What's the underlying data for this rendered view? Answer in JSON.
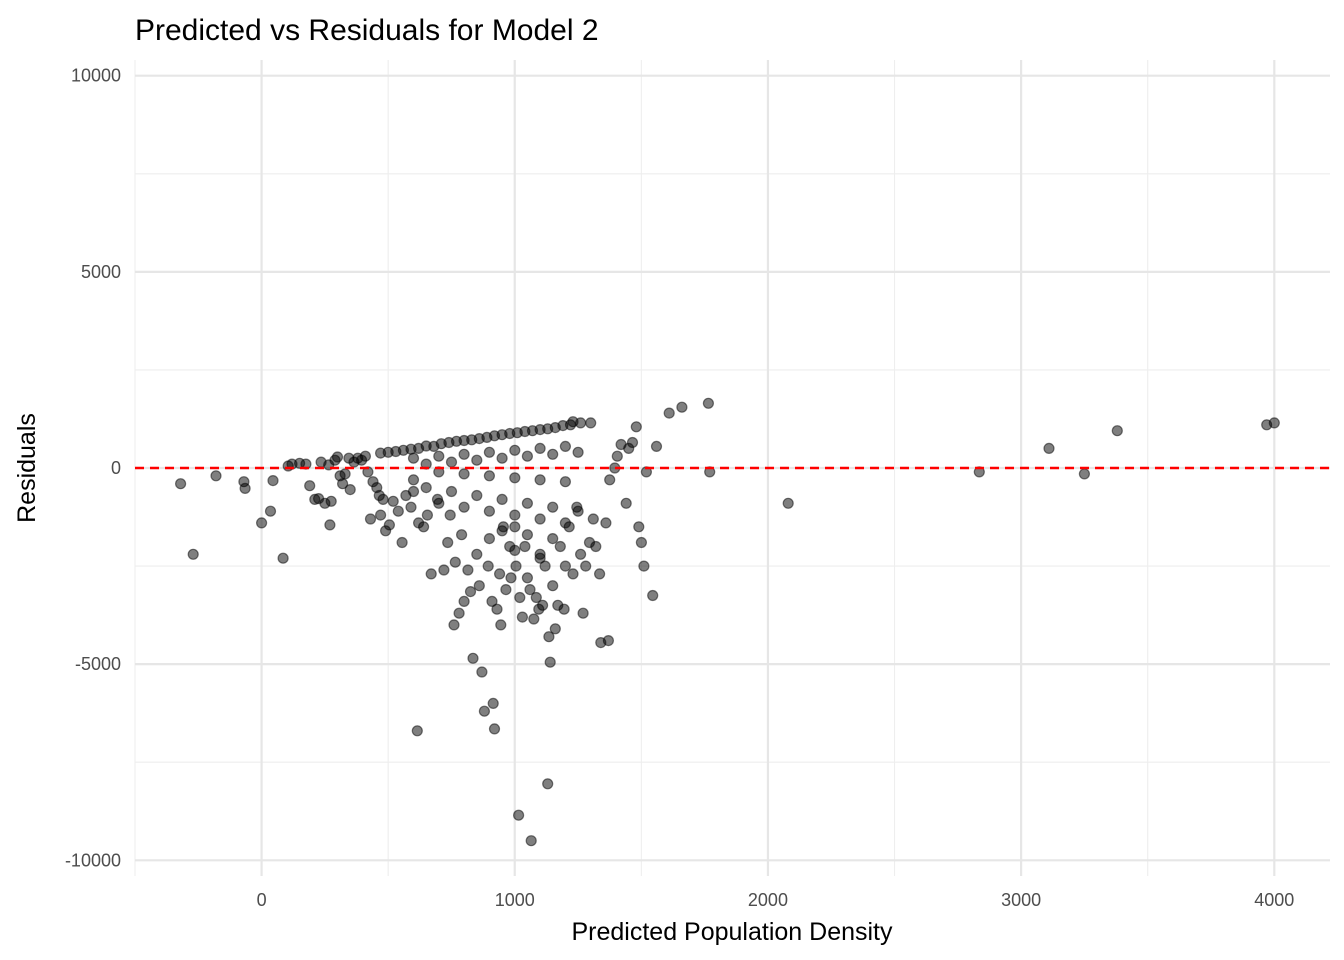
{
  "chart_data": {
    "type": "scatter",
    "title": "Predicted vs Residuals for Model 2",
    "xlabel": "Predicted Population Density",
    "ylabel": "Residuals",
    "xlim": [
      -500,
      4220
    ],
    "ylim": [
      -10400,
      10400
    ],
    "x_ticks": [
      0,
      1000,
      2000,
      3000,
      4000
    ],
    "y_ticks": [
      -10000,
      -5000,
      0,
      5000,
      10000
    ],
    "grid": true,
    "reference_line": {
      "y": 0,
      "style": "dashed",
      "color": "#ff0000"
    },
    "point_color": "#000000",
    "point_alpha": 0.5,
    "points": [
      [
        -320,
        -400
      ],
      [
        -270,
        -2200
      ],
      [
        -180,
        -200
      ],
      [
        -70,
        -350
      ],
      [
        -65,
        -520
      ],
      [
        0,
        -1400
      ],
      [
        35,
        -1100
      ],
      [
        45,
        -320
      ],
      [
        85,
        -2300
      ],
      [
        105,
        50
      ],
      [
        120,
        100
      ],
      [
        150,
        120
      ],
      [
        175,
        100
      ],
      [
        190,
        -450
      ],
      [
        210,
        -800
      ],
      [
        225,
        -780
      ],
      [
        235,
        150
      ],
      [
        250,
        -900
      ],
      [
        265,
        80
      ],
      [
        270,
        -1450
      ],
      [
        275,
        -850
      ],
      [
        290,
        200
      ],
      [
        300,
        280
      ],
      [
        310,
        -200
      ],
      [
        320,
        -400
      ],
      [
        330,
        -150
      ],
      [
        345,
        250
      ],
      [
        350,
        -550
      ],
      [
        365,
        150
      ],
      [
        380,
        250
      ],
      [
        395,
        200
      ],
      [
        420,
        -100
      ],
      [
        430,
        -1300
      ],
      [
        440,
        -350
      ],
      [
        455,
        -500
      ],
      [
        465,
        -700
      ],
      [
        470,
        -1200
      ],
      [
        480,
        -800
      ],
      [
        490,
        -1600
      ],
      [
        505,
        -1450
      ],
      [
        520,
        -850
      ],
      [
        540,
        -1100
      ],
      [
        555,
        -1900
      ],
      [
        570,
        -700
      ],
      [
        590,
        -1000
      ],
      [
        600,
        -600
      ],
      [
        615,
        -6700
      ],
      [
        620,
        -1400
      ],
      [
        640,
        -1500
      ],
      [
        655,
        -1200
      ],
      [
        670,
        -2700
      ],
      [
        695,
        -800
      ],
      [
        720,
        -2600
      ],
      [
        735,
        -1900
      ],
      [
        745,
        -1200
      ],
      [
        760,
        -4000
      ],
      [
        765,
        -2400
      ],
      [
        780,
        -3700
      ],
      [
        790,
        -1700
      ],
      [
        800,
        -3400
      ],
      [
        815,
        -2600
      ],
      [
        825,
        -3150
      ],
      [
        835,
        -4850
      ],
      [
        850,
        -2200
      ],
      [
        860,
        -3000
      ],
      [
        870,
        -5200
      ],
      [
        880,
        -6200
      ],
      [
        895,
        -2500
      ],
      [
        910,
        -3400
      ],
      [
        915,
        -6000
      ],
      [
        920,
        -6650
      ],
      [
        930,
        -3600
      ],
      [
        940,
        -2700
      ],
      [
        945,
        -4000
      ],
      [
        955,
        -1500
      ],
      [
        965,
        -3100
      ],
      [
        980,
        -2000
      ],
      [
        985,
        -2800
      ],
      [
        1000,
        -1500
      ],
      [
        1005,
        -2500
      ],
      [
        1015,
        -8850
      ],
      [
        1020,
        -3300
      ],
      [
        1030,
        -3800
      ],
      [
        1040,
        -2000
      ],
      [
        1050,
        -2800
      ],
      [
        1060,
        -3100
      ],
      [
        1065,
        -9500
      ],
      [
        1075,
        -3850
      ],
      [
        1085,
        -3300
      ],
      [
        1095,
        -3600
      ],
      [
        1100,
        -2200
      ],
      [
        1110,
        -3500
      ],
      [
        1120,
        -2500
      ],
      [
        1130,
        -8050
      ],
      [
        1135,
        -4300
      ],
      [
        1140,
        -4950
      ],
      [
        1150,
        -3000
      ],
      [
        1160,
        -4100
      ],
      [
        1170,
        -3500
      ],
      [
        1180,
        -2000
      ],
      [
        1195,
        -3600
      ],
      [
        1200,
        -2500
      ],
      [
        1215,
        -1500
      ],
      [
        1230,
        -2700
      ],
      [
        1245,
        -1000
      ],
      [
        1260,
        -2200
      ],
      [
        1270,
        -3700
      ],
      [
        1280,
        -2500
      ],
      [
        1295,
        -1900
      ],
      [
        1310,
        -1300
      ],
      [
        1320,
        -2000
      ],
      [
        1335,
        -2700
      ],
      [
        1340,
        -4450
      ],
      [
        1360,
        -1400
      ],
      [
        1370,
        -4400
      ],
      [
        1375,
        -300
      ],
      [
        1395,
        0
      ],
      [
        1405,
        300
      ],
      [
        1420,
        600
      ],
      [
        1440,
        -900
      ],
      [
        1450,
        500
      ],
      [
        1465,
        650
      ],
      [
        1480,
        1050
      ],
      [
        1490,
        -1500
      ],
      [
        1500,
        -1900
      ],
      [
        1510,
        -2500
      ],
      [
        1520,
        -100
      ],
      [
        1545,
        -3250
      ],
      [
        1560,
        550
      ],
      [
        1610,
        1400
      ],
      [
        1660,
        1550
      ],
      [
        1765,
        1650
      ],
      [
        1770,
        -100
      ],
      [
        2080,
        -900
      ],
      [
        2835,
        -100
      ],
      [
        3110,
        500
      ],
      [
        3250,
        -150
      ],
      [
        3380,
        950
      ],
      [
        3970,
        1100
      ],
      [
        4000,
        1150
      ],
      [
        500,
        400
      ],
      [
        560,
        450
      ],
      [
        620,
        500
      ],
      [
        680,
        550
      ],
      [
        740,
        650
      ],
      [
        800,
        700
      ],
      [
        860,
        750
      ],
      [
        920,
        820
      ],
      [
        980,
        880
      ],
      [
        1040,
        930
      ],
      [
        1100,
        980
      ],
      [
        1160,
        1030
      ],
      [
        1220,
        1100
      ],
      [
        1260,
        1150
      ],
      [
        1300,
        1150
      ],
      [
        1230,
        1180
      ],
      [
        1190,
        1080
      ],
      [
        1130,
        1000
      ],
      [
        1070,
        950
      ],
      [
        1010,
        900
      ],
      [
        950,
        850
      ],
      [
        890,
        780
      ],
      [
        830,
        720
      ],
      [
        770,
        680
      ],
      [
        710,
        620
      ],
      [
        650,
        560
      ],
      [
        590,
        480
      ],
      [
        530,
        420
      ],
      [
        470,
        380
      ],
      [
        410,
        300
      ],
      [
        600,
        250
      ],
      [
        700,
        300
      ],
      [
        800,
        350
      ],
      [
        900,
        400
      ],
      [
        1000,
        450
      ],
      [
        1100,
        500
      ],
      [
        1200,
        550
      ],
      [
        650,
        100
      ],
      [
        750,
        150
      ],
      [
        850,
        200
      ],
      [
        950,
        250
      ],
      [
        1050,
        300
      ],
      [
        1150,
        350
      ],
      [
        1250,
        400
      ],
      [
        700,
        -100
      ],
      [
        800,
        -150
      ],
      [
        900,
        -200
      ],
      [
        1000,
        -250
      ],
      [
        1100,
        -300
      ],
      [
        1200,
        -350
      ],
      [
        600,
        -300
      ],
      [
        650,
        -500
      ],
      [
        750,
        -600
      ],
      [
        850,
        -700
      ],
      [
        950,
        -800
      ],
      [
        1050,
        -900
      ],
      [
        1150,
        -1000
      ],
      [
        1250,
        -1100
      ],
      [
        700,
        -900
      ],
      [
        800,
        -1000
      ],
      [
        900,
        -1100
      ],
      [
        1000,
        -1200
      ],
      [
        1100,
        -1300
      ],
      [
        1200,
        -1400
      ],
      [
        950,
        -1600
      ],
      [
        1050,
        -1700
      ],
      [
        1150,
        -1800
      ],
      [
        1000,
        -2100
      ],
      [
        1100,
        -2300
      ],
      [
        900,
        -1800
      ]
    ]
  }
}
